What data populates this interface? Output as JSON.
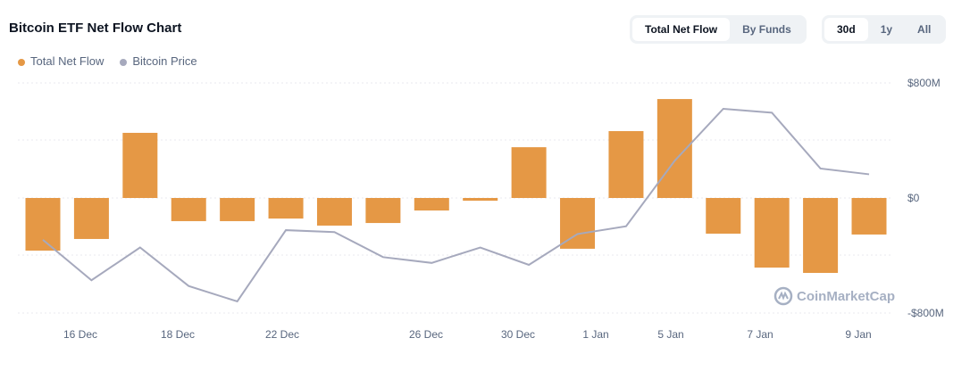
{
  "header": {
    "title": "Bitcoin ETF Net Flow Chart"
  },
  "toggles": {
    "view": [
      {
        "label": "Total Net Flow",
        "active": true
      },
      {
        "label": "By Funds",
        "active": false
      }
    ],
    "range": [
      {
        "label": "30d",
        "active": true
      },
      {
        "label": "1y",
        "active": false
      },
      {
        "label": "All",
        "active": false
      }
    ]
  },
  "watermark": "CoinMarketCap",
  "colors": {
    "flow": "#e59845",
    "price": "#a6a9bd",
    "grid": "#e8eaef"
  },
  "chart_data": {
    "type": "bar+line",
    "legend": [
      "Total Net Flow",
      "Bitcoin Price"
    ],
    "legend_position": "top-left",
    "y_ticks": [
      "$800M",
      "$0",
      "-$800M"
    ],
    "ylim": [
      -800,
      800
    ],
    "y_unit": "$M",
    "x_ticks": [
      "16 Dec",
      "18 Dec",
      "22 Dec",
      "26 Dec",
      "30 Dec",
      "1 Jan",
      "5 Jan",
      "7 Jan",
      "9 Jan"
    ],
    "grid": true,
    "series": [
      {
        "name": "Total Net Flow",
        "type": "bar",
        "values": [
          -366,
          -285,
          453,
          -161,
          -161,
          -143,
          -192,
          -174,
          -87,
          -19,
          353,
          -353,
          465,
          688,
          -248,
          -484,
          -521,
          -254
        ]
      },
      {
        "name": "Bitcoin Price",
        "type": "line",
        "values": [
          95200,
          93100,
          94800,
          92800,
          92000,
          95700,
          95600,
          94300,
          94000,
          94800,
          93900,
          95500,
          95900,
          99300,
          102000,
          101800,
          98900,
          98600
        ]
      }
    ]
  }
}
